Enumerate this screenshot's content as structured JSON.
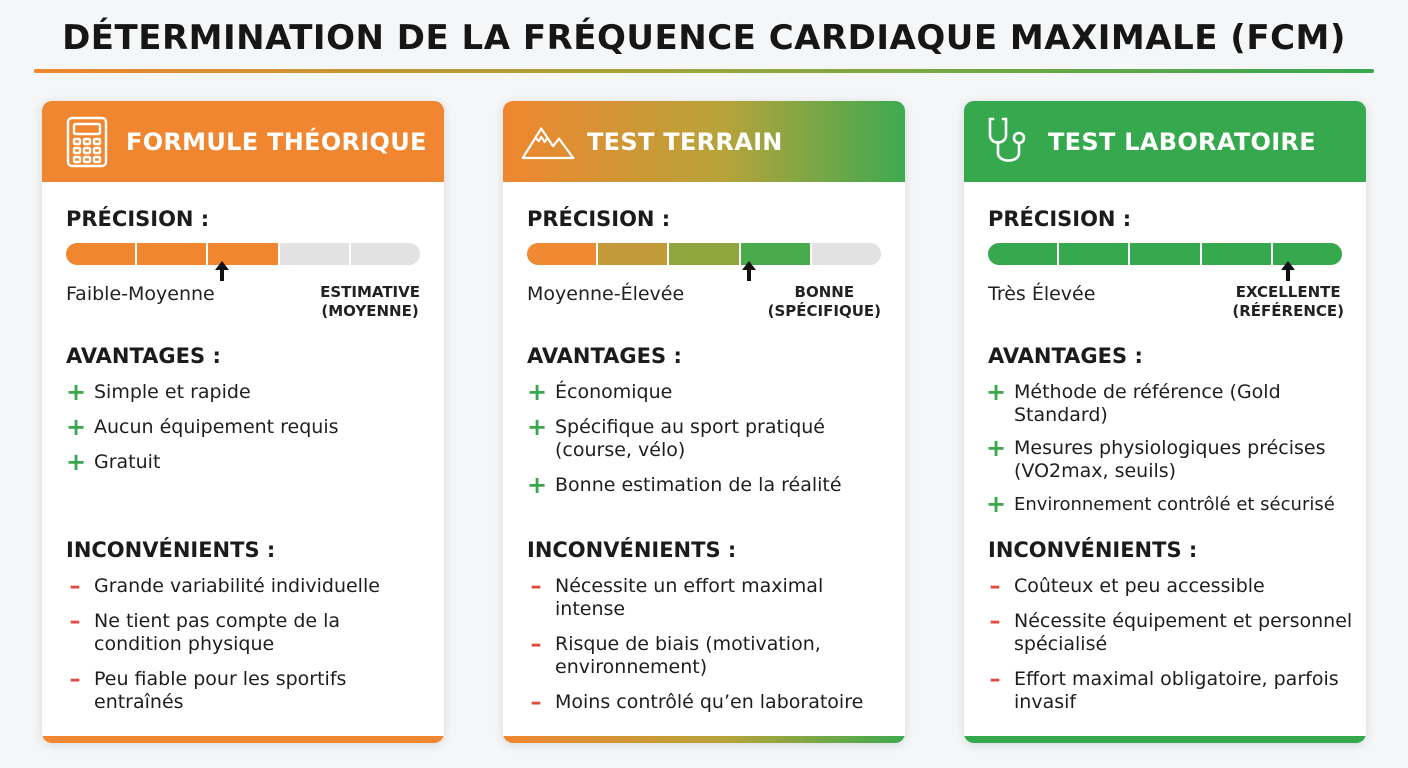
{
  "title": "DÉTERMINATION DE LA FRÉQUENCE CARDIAQUE MAXIMALE (FCM)",
  "labels": {
    "precision": "PRÉCISION :",
    "advantages": "AVANTAGES :",
    "disadvantages": "INCONVÉNIENTS :"
  },
  "colors": {
    "orange": "#f0862f",
    "green": "#36a94f",
    "minus_red": "#e04a3f",
    "empty_segment": "#e2e2e2"
  },
  "cards": [
    {
      "icon": "calculator-icon",
      "title": "FORMULE THÉORIQUE",
      "precision_value": "Faible-Moyenne",
      "precision_tag_line1": "ESTIMATIVE",
      "precision_tag_line2": "(MOYENNE)",
      "precision_segments_filled": 3,
      "precision_segments_total": 5,
      "advantages": [
        "Simple et rapide",
        "Aucun équipement requis",
        "Gratuit"
      ],
      "disadvantages": [
        "Grande variabilité individuelle",
        "Ne tient pas compte de la condition physique",
        "Peu fiable pour les sportifs entraînés"
      ]
    },
    {
      "icon": "mountain-icon",
      "title": "TEST TERRAIN",
      "precision_value": "Moyenne-Élevée",
      "precision_tag_line1": "BONNE",
      "precision_tag_line2": "(SPÉCIFIQUE)",
      "precision_segments_filled": 4,
      "precision_segments_total": 5,
      "advantages": [
        "Économique",
        "Spécifique au sport pratiqué (course, vélo)",
        "Bonne estimation de la réalité"
      ],
      "disadvantages": [
        "Nécessite un effort maximal intense",
        "Risque de biais (motivation, environnement)",
        "Moins contrôlé qu’en laboratoire"
      ]
    },
    {
      "icon": "stethoscope-icon",
      "title": "TEST LABORATOIRE",
      "precision_value": "Très Élevée",
      "precision_tag_line1": "EXCELLENTE",
      "precision_tag_line2": "(RÉFÉRENCE)",
      "precision_segments_filled": 5,
      "precision_segments_total": 5,
      "advantages": [
        "Méthode de référence (Gold Standard)",
        "Mesures physiologiques précises (VO2max, seuils)",
        "Environnement contrôlé et sécurisé"
      ],
      "disadvantages": [
        "Coûteux et peu accessible",
        "Nécessite équipement et personnel spécialisé",
        "Effort maximal obligatoire, parfois invasif"
      ]
    }
  ]
}
